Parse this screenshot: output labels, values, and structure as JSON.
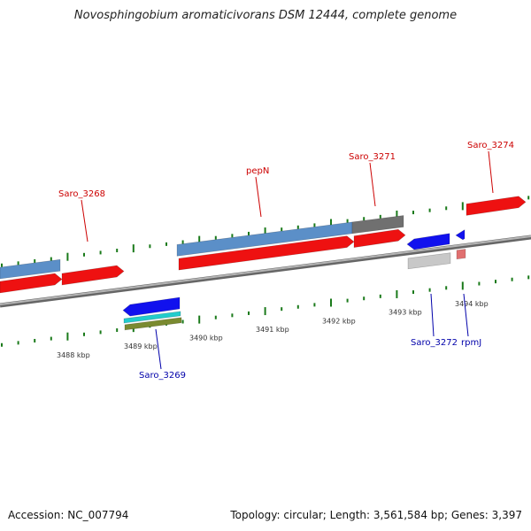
{
  "title": "Novosphingobium aromaticivorans DSM 12444, complete genome",
  "footer": {
    "accession": "Accession: NC_007794",
    "info": "Topology: circular; Length: 3,561,584 bp; Genes: 3,397"
  },
  "kbp_labels": [
    "3488 kbp",
    "3489 kbp",
    "3490 kbp",
    "3491 kbp",
    "3492 kbp",
    "3493 kbp",
    "3494 kbp"
  ],
  "gene_labels": [
    {
      "text": "Saro_3268",
      "strand": "forward",
      "color": "#cc0000"
    },
    {
      "text": "pepN",
      "strand": "forward",
      "color": "#cc0000"
    },
    {
      "text": "Saro_3271",
      "strand": "forward",
      "color": "#cc0000"
    },
    {
      "text": "Saro_3274",
      "strand": "forward",
      "color": "#cc0000"
    },
    {
      "text": "Saro_3269",
      "strand": "reverse",
      "color": "#0000aa"
    },
    {
      "text": "Saro_3272",
      "strand": "reverse",
      "color": "#0000aa"
    },
    {
      "text": "rpmJ",
      "strand": "reverse",
      "color": "#0000aa"
    }
  ],
  "colors": {
    "backbone": "#888888",
    "cds_forward": "#ee1111",
    "cds_reverse": "#1111ee",
    "gene_bar": "#5b8fc8",
    "pseudo_bar": "#707070",
    "tick": "#1a7a1a",
    "rna": "#e07070",
    "misc": "#22cccc",
    "olive": "#7a8a30"
  }
}
